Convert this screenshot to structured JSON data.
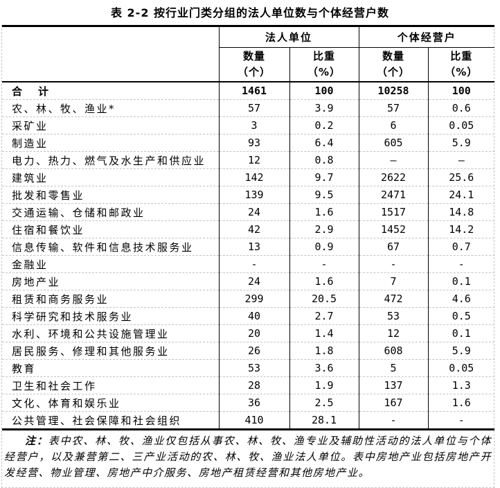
{
  "title": "表 2-2 按行业门类分组的法人单位数与个体经营户数",
  "table": {
    "group_headers": [
      {
        "label": "法人单位"
      },
      {
        "label": "个体经营户"
      }
    ],
    "sub_headers": [
      {
        "line1": "数量",
        "line2": "（个）"
      },
      {
        "line1": "比重",
        "line2": "（%）"
      },
      {
        "line1": "数量",
        "line2": "（个）"
      },
      {
        "line1": "比重",
        "line2": "（%）"
      }
    ],
    "rows": [
      {
        "industry": "合　计",
        "bold": true,
        "values": [
          "1461",
          "100",
          "10258",
          "100"
        ]
      },
      {
        "industry": "农、林、牧、渔业*",
        "bold": false,
        "values": [
          "57",
          "3.9",
          "57",
          "0.6"
        ]
      },
      {
        "industry": "采矿业",
        "bold": false,
        "values": [
          "3",
          "0.2",
          "6",
          "0.05"
        ]
      },
      {
        "industry": "制造业",
        "bold": false,
        "values": [
          "93",
          "6.4",
          "605",
          "5.9"
        ]
      },
      {
        "industry": "电力、热力、燃气及水生产和供应业",
        "bold": false,
        "values": [
          "12",
          "0.8",
          "—",
          "—"
        ]
      },
      {
        "industry": "建筑业",
        "bold": false,
        "values": [
          "142",
          "9.7",
          "2622",
          "25.6"
        ]
      },
      {
        "industry": "批发和零售业",
        "bold": false,
        "values": [
          "139",
          "9.5",
          "2471",
          "24.1"
        ]
      },
      {
        "industry": "交通运输、仓储和邮政业",
        "bold": false,
        "values": [
          "24",
          "1.6",
          "1517",
          "14.8"
        ]
      },
      {
        "industry": "住宿和餐饮业",
        "bold": false,
        "values": [
          "42",
          "2.9",
          "1452",
          "14.2"
        ]
      },
      {
        "industry": "信息传输、软件和信息技术服务业",
        "bold": false,
        "values": [
          "13",
          "0.9",
          "67",
          "0.7"
        ]
      },
      {
        "industry": "金融业",
        "bold": false,
        "values": [
          "-",
          "-",
          "-",
          "-"
        ]
      },
      {
        "industry": "房地产业",
        "bold": false,
        "values": [
          "24",
          "1.6",
          "7",
          "0.1"
        ]
      },
      {
        "industry": "租赁和商务服务业",
        "bold": false,
        "values": [
          "299",
          "20.5",
          "472",
          "4.6"
        ]
      },
      {
        "industry": "科学研究和技术服务业",
        "bold": false,
        "values": [
          "40",
          "2.7",
          "53",
          "0.5"
        ]
      },
      {
        "industry": "水利、环境和公共设施管理业",
        "bold": false,
        "values": [
          "20",
          "1.4",
          "12",
          "0.1"
        ]
      },
      {
        "industry": "居民服务、修理和其他服务业",
        "bold": false,
        "values": [
          "26",
          "1.8",
          "608",
          "5.9"
        ]
      },
      {
        "industry": "教育",
        "bold": false,
        "values": [
          "53",
          "3.6",
          "5",
          "0.05"
        ]
      },
      {
        "industry": "卫生和社会工作",
        "bold": false,
        "values": [
          "28",
          "1.9",
          "137",
          "1.3"
        ]
      },
      {
        "industry": "文化、体育和娱乐业",
        "bold": false,
        "values": [
          "36",
          "2.5",
          "167",
          "1.6"
        ]
      },
      {
        "industry": "公共管理、社会保障和社会组织",
        "bold": false,
        "values": [
          "410",
          "28.1",
          "-",
          "-"
        ]
      }
    ]
  },
  "note": {
    "label": "注：",
    "text": "表中农、林、牧、渔业仅包括从事农、林、牧、渔专业及辅助性活动的法人单位与个体经营户，以及兼营第二、三产业活动的农、林、牧、渔业法人单位。表中房地产业包括房地产开发经营、物业管理、房地产中介服务、房地产租赁经营和其他房地产业。"
  },
  "colors": {
    "border": "#000000",
    "grid_dashed": "#c4c4c4",
    "background": "#ffffff",
    "text": "#000000"
  }
}
